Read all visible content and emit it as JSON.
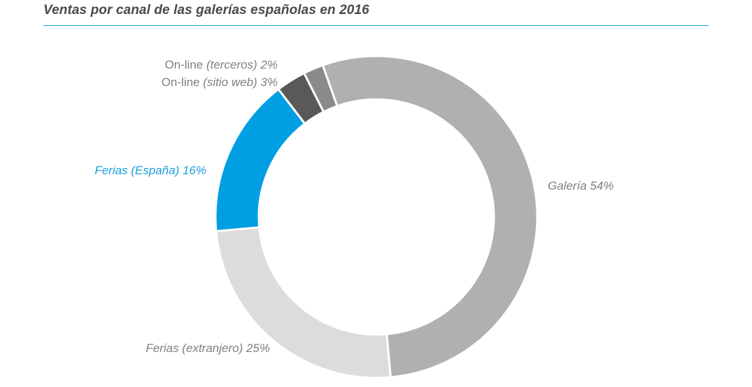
{
  "title": "Ventas por canal de las galerías españolas en 2016",
  "chart_data": {
    "type": "pie",
    "donut": true,
    "title": "Ventas por canal de las galerías españolas en 2016",
    "unit": "%",
    "slices": [
      {
        "key": "galeria",
        "label_parts": [
          {
            "t": "Galería 54%",
            "i": true
          }
        ],
        "value": 54,
        "color": "#b0b0b0",
        "label_color": "#808080"
      },
      {
        "key": "ferias-extranjero",
        "label_parts": [
          {
            "t": "Ferias (extranjero) 25%",
            "i": true
          }
        ],
        "value": 25,
        "color": "#dcdcdc",
        "label_color": "#808080"
      },
      {
        "key": "ferias-espana",
        "label_parts": [
          {
            "t": "Ferias (España) 16%",
            "i": true
          }
        ],
        "value": 16,
        "color": "#009fe3",
        "label_color": "#1a9edc"
      },
      {
        "key": "online-sitio-web",
        "label_parts": [
          {
            "t": "On-line ",
            "i": false
          },
          {
            "t": "(sitio web) 3%",
            "i": true
          }
        ],
        "value": 3,
        "color": "#595959",
        "label_color": "#808080"
      },
      {
        "key": "online-terceros",
        "label_parts": [
          {
            "t": "On-line ",
            "i": false
          },
          {
            "t": "(terceros) 2%",
            "i": true
          }
        ],
        "value": 2,
        "color": "#8a8a8a",
        "label_color": "#808080"
      }
    ]
  }
}
